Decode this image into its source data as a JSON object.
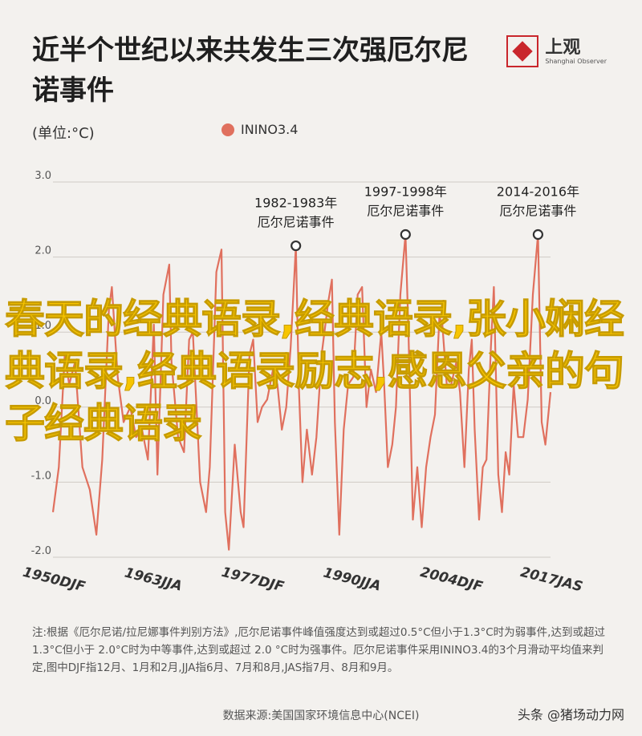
{
  "title": "近半个世纪以来共发生三次强厄尔尼诺事件",
  "brand": {
    "name": "上观",
    "sub": "Shanghai Observer"
  },
  "unit": "(单位:°C)",
  "legend_label": "ININO3.4",
  "colors": {
    "line": "#e0705e",
    "accent": "#c9262c",
    "overlay": "#f7c500"
  },
  "annotations": [
    {
      "line1": "1982-1983年",
      "line2": "厄尔尼诺事件",
      "x": 1983.0,
      "y": 2.15
    },
    {
      "line1": "1997-1998年",
      "line2": "厄尔尼诺事件",
      "x": 1997.9,
      "y": 2.3
    },
    {
      "line1": "2014-2016年",
      "line2": "厄尔尼诺事件",
      "x": 2015.9,
      "y": 2.3
    }
  ],
  "note": "注:根据《厄尔尼诺/拉尼娜事件判别方法》,厄尔尼诺事件峰值强度达到或超过0.5°C但小于1.3°C时为弱事件,达到或超过 1.3°C但小于 2.0°C时为中等事件,达到或超过 2.0 °C时为强事件。厄尔尼诺事件采用ININO3.4的3个月滑动平均值来判定,图中DJF指12月、1月和2月,JJA指6月、7月和8月,JAS指7月、8月和9月。",
  "source": "数据来源:美国国家环境信息中心(NCEI)",
  "watermark_caption": "头条 @猪场动力网",
  "overlay_text": "春天的经典语录,经典语录,张小娴经典语录,经典语录励志,感恩父亲的句子经典语录",
  "chart_data": {
    "type": "line",
    "x_tick_labels": [
      "1950DJF",
      "1963JJA",
      "1977DJF",
      "1990JJA",
      "2004DJF",
      "2017JAS"
    ],
    "x_tick_positions": [
      1950.0,
      1963.5,
      1977.0,
      1990.5,
      2004.0,
      2017.6
    ],
    "y_ticks": [
      3.0,
      2.0,
      1.0,
      0.0,
      -1.0,
      -2.0
    ],
    "y_tick_labels": [
      "3.0",
      "2.0",
      "1.0",
      "0.0",
      "-1.0",
      "-2.0"
    ],
    "ylim": [
      -2.0,
      3.0
    ],
    "xlim": [
      1950.0,
      2017.6
    ],
    "series": [
      {
        "name": "ININO3.4",
        "x": [
          1950.0,
          1950.8,
          1951.6,
          1952.2,
          1953.0,
          1954.0,
          1955.0,
          1955.9,
          1956.7,
          1957.6,
          1958.0,
          1958.8,
          1959.6,
          1960.5,
          1961.3,
          1962.1,
          1962.9,
          1963.7,
          1964.2,
          1965.0,
          1965.8,
          1966.1,
          1967.0,
          1967.8,
          1968.5,
          1969.0,
          1970.0,
          1970.8,
          1971.3,
          1972.2,
          1972.9,
          1973.4,
          1973.9,
          1974.7,
          1975.5,
          1975.9,
          1976.7,
          1977.2,
          1977.8,
          1978.4,
          1979.1,
          1979.9,
          1980.5,
          1981.1,
          1981.7,
          1982.3,
          1983.0,
          1983.4,
          1983.9,
          1984.5,
          1985.2,
          1985.8,
          1986.5,
          1987.4,
          1987.9,
          1988.3,
          1988.9,
          1989.5,
          1990.1,
          1990.8,
          1991.4,
          1992.0,
          1992.6,
          1993.2,
          1993.9,
          1994.6,
          1995.0,
          1995.5,
          1996.1,
          1996.6,
          1997.2,
          1997.9,
          1998.3,
          1998.9,
          1999.5,
          2000.1,
          2000.7,
          2001.3,
          2001.9,
          2002.5,
          2002.9,
          2003.5,
          2004.1,
          2004.8,
          2005.3,
          2005.9,
          2006.5,
          2006.9,
          2007.3,
          2007.9,
          2008.4,
          2008.9,
          2009.5,
          2009.9,
          2010.5,
          2011.0,
          2011.5,
          2012.0,
          2012.6,
          2013.2,
          2013.9,
          2014.5,
          2015.2,
          2015.9,
          2016.4,
          2016.9,
          2017.6
        ],
        "values": [
          -1.4,
          -0.8,
          0.7,
          0.3,
          0.6,
          -0.8,
          -1.1,
          -1.7,
          -0.7,
          1.3,
          1.6,
          0.4,
          -0.2,
          0.0,
          -0.4,
          -0.3,
          -0.7,
          1.1,
          -0.9,
          1.5,
          1.9,
          0.6,
          -0.4,
          -0.6,
          0.9,
          1.0,
          -1.0,
          -1.4,
          -0.8,
          1.8,
          2.1,
          -1.4,
          -1.9,
          -0.5,
          -1.4,
          -1.6,
          0.7,
          0.9,
          -0.2,
          0.0,
          0.1,
          0.5,
          0.3,
          -0.3,
          0.0,
          0.8,
          2.15,
          0.3,
          -1.0,
          -0.3,
          -0.9,
          -0.4,
          0.7,
          1.4,
          1.7,
          -0.2,
          -1.7,
          -0.3,
          0.3,
          0.4,
          1.5,
          1.6,
          0.0,
          0.5,
          0.2,
          1.0,
          0.3,
          -0.8,
          -0.5,
          0.0,
          1.5,
          2.3,
          1.0,
          -1.5,
          -0.8,
          -1.6,
          -0.8,
          -0.4,
          -0.1,
          1.2,
          1.1,
          0.3,
          0.3,
          0.6,
          0.2,
          -0.8,
          0.5,
          0.9,
          -0.3,
          -1.5,
          -0.8,
          -0.7,
          0.8,
          1.6,
          -0.9,
          -1.4,
          -0.6,
          -0.9,
          0.3,
          -0.4,
          -0.4,
          0.1,
          1.5,
          2.3,
          -0.2,
          -0.5,
          0.2
        ]
      }
    ]
  }
}
